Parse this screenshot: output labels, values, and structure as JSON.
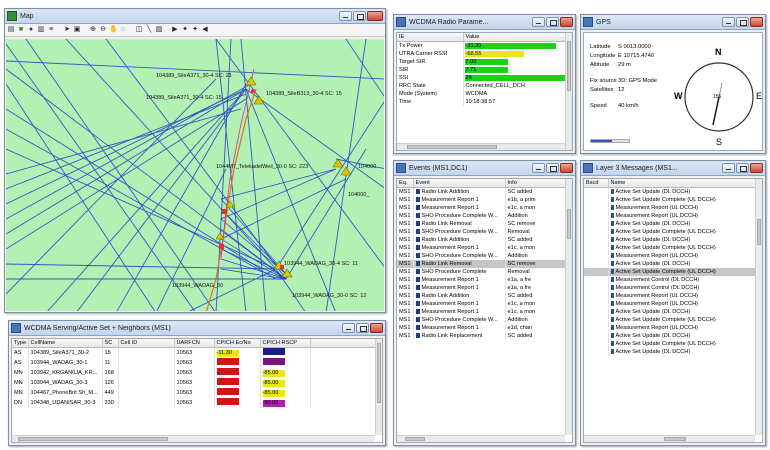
{
  "map": {
    "title": "Map",
    "toolbar_icons": [
      "layer-icon",
      "stop-icon",
      "info-icon",
      "legend-icon",
      "cursor-icon",
      "select-icon",
      "zoom-in-icon",
      "zoom-out-icon",
      "pan-icon",
      "measure-icon",
      "play-icon",
      "forward-icon"
    ],
    "sites": [
      {
        "label": "104389_SileA371_30-4 SC: 21"
      },
      {
        "label": "104389_SileA371_30-4 SC: 15"
      },
      {
        "label": "104389_SileB313_30-4 SC: 15"
      },
      {
        "label": "1044M7_TelekadelWeil_30-0 SC: 223"
      },
      {
        "label": "104000"
      },
      {
        "label": "104000_"
      },
      {
        "label": "103944_WADAG_30-4 SC: 11"
      },
      {
        "label": "103944_WADAG_30"
      },
      {
        "label": "103944_WADAG_30-0 SC: 12"
      }
    ]
  },
  "radio": {
    "title": "WCDMA Radio Parame...",
    "headers": [
      "IE",
      "Value"
    ],
    "rows": [
      {
        "ie": "Tx Power",
        "value": "-31.30",
        "color": "#19d219",
        "fill": 0.85
      },
      {
        "ie": "UTRA Carrier RSSI",
        "value": "-68.55",
        "color": "#e6e619",
        "fill": 0.55
      },
      {
        "ie": "Target SIR",
        "value": "7.00",
        "color": "#19d219",
        "fill": 0.4
      },
      {
        "ie": "SIR",
        "value": "7.71",
        "color": "#19d219",
        "fill": 0.4
      },
      {
        "ie": "SSI",
        "value": "28",
        "color": "#19d219",
        "fill": 0.95
      },
      {
        "ie": "RRC State",
        "value": "Connected_CELL_DCH",
        "color": "",
        "fill": 0
      },
      {
        "ie": "Mode (System)",
        "value": "WCDMA",
        "color": "",
        "fill": 0
      },
      {
        "ie": "Time",
        "value": "10:18:38.57",
        "color": "",
        "fill": 0
      }
    ]
  },
  "gps": {
    "title": "GPS",
    "lines": [
      {
        "k": "Latitude",
        "v": "S  0013.0000"
      },
      {
        "k": "Longitude",
        "v": "E 10715.4740"
      },
      {
        "k": "Altitude",
        "v": "29 m"
      },
      {
        "k": "Fix source",
        "v": "3D: GPS Mode"
      },
      {
        "k": "Satellites",
        "v": "12"
      },
      {
        "k": "Speed",
        "v": "40 km/h"
      }
    ],
    "compass": {
      "n": "N",
      "s": "S",
      "e": "E",
      "w": "W",
      "heading": "156"
    }
  },
  "events": {
    "title": "Events (MS1,DC1)",
    "headers": [
      "Eq.",
      "Event",
      "Info"
    ],
    "rows": [
      [
        "MS1",
        "Radio Link Addition",
        "SC added"
      ],
      [
        "MS1",
        "Measurement Report 1",
        "e1b, a prim"
      ],
      [
        "MS1",
        "Measurement Report 1",
        "e1c, a mon"
      ],
      [
        "MS1",
        "SHO Procedure Complete W...",
        "Addition"
      ],
      [
        "MS1",
        "Radio Link Removal",
        "SC remove"
      ],
      [
        "MS1",
        "SHO Procedure Complete W...",
        "Removal"
      ],
      [
        "MS1",
        "Radio Link Addition",
        "SC added"
      ],
      [
        "MS1",
        "Measurement Report 1",
        "e1c, a mon"
      ],
      [
        "MS1",
        "SHO Procedure Complete W...",
        "Addition"
      ],
      [
        "MS1",
        "Radio Link Removal",
        "SC remove"
      ],
      [
        "MS1",
        "SHO Procedure Complete",
        "Removal"
      ],
      [
        "MS1",
        "Measurement Report 1",
        "e1a, a fre"
      ],
      [
        "MS1",
        "Measurement Report 1",
        "e1a, a fre"
      ],
      [
        "MS1",
        "Radio Link Addition",
        "SC added"
      ],
      [
        "MS1",
        "Measurement Report 1",
        "e1c, a mon"
      ],
      [
        "MS1",
        "Measurement Report 1",
        "e1c, a mon"
      ],
      [
        "MS1",
        "SHO Procedure Complete W...",
        "Addition"
      ],
      [
        "MS1",
        "Measurement Report 1",
        "e1d, chan"
      ],
      [
        "MS1",
        "Radio Link Replacement",
        "SC added"
      ]
    ],
    "selected_index": 9
  },
  "layer3": {
    "title": "Layer 3 Messages (MS1...",
    "headers": [
      "Bscd",
      "Name"
    ],
    "rows": [
      "Active Set Update (DL DCCH)",
      "Active Set Update Complete (UL DCCH)",
      "Measurement Report (UL DCCH)",
      "Measurement Report (UL DCCH)",
      "Active Set Update (DL DCCH)",
      "Active Set Update Complete (UL DCCH)",
      "Active Set Update (DL DCCH)",
      "Active Set Update Complete (UL DCCH)",
      "Measurement Report (UL DCCH)",
      "Active Set Update (DL DCCH)",
      "Active Set Update Complete (UL DCCH)",
      "Measurement Control (DL DCCH)",
      "Measurement Control (DL DCCH)",
      "Measurement Report (UL DCCH)",
      "Measurement Report (UL DCCH)",
      "Active Set Update (DL DCCH)",
      "Active Set Update Complete (UL DCCH)",
      "Measurement Report (UL DCCH)",
      "Active Set Update (DL DCCH)",
      "Active Set Update Complete (UL DCCH)",
      "Active Set Update (DL DCCH)"
    ],
    "selected_index": 10
  },
  "serving": {
    "title": "WCDMA Serving/Active Set + Neighbors (MS1)",
    "headers": [
      "Type",
      "CellName",
      "SC",
      "Cell ID",
      "UARFCN",
      "CPICH Ec/No",
      "CPICH RSCP"
    ],
    "rows": [
      {
        "type": "AS",
        "cell": "104389_SileA371_30-2",
        "sc": "15",
        "id": "",
        "uarfcn": "10563",
        "ecno": "-11.30",
        "ecno_c": "#e6e619",
        "rscp": "",
        "rscp_c": "#1a1a8a"
      },
      {
        "type": "AS",
        "cell": "103944_WADAG_30-1",
        "sc": "11",
        "id": "",
        "uarfcn": "10563",
        "ecno": "",
        "ecno_c": "#d41414",
        "rscp": "",
        "rscp_c": "#7a147a"
      },
      {
        "type": "MN",
        "cell": "103942_KRGAN0JA_KR...",
        "sc": "168",
        "id": "",
        "uarfcn": "10563",
        "ecno": "",
        "ecno_c": "#d41414",
        "rscp": "-85.00",
        "rscp_c": "#e6e619"
      },
      {
        "type": "MN",
        "cell": "103944_WADAG_30-3",
        "sc": "126",
        "id": "",
        "uarfcn": "10563",
        "ecno": "",
        "ecno_c": "#d41414",
        "rscp": "-85.00",
        "rscp_c": "#e6e619"
      },
      {
        "type": "MN",
        "cell": "104467_PhoneBrit Sh_M...",
        "sc": "449",
        "id": "",
        "uarfcn": "10563",
        "ecno": "",
        "ecno_c": "#d41414",
        "rscp": "-85.00",
        "rscp_c": "#e6e619"
      },
      {
        "type": "DN",
        "cell": "104348_UDANISAR_30-3",
        "sc": "330",
        "id": "",
        "uarfcn": "10563",
        "ecno": "",
        "ecno_c": "#d41414",
        "rscp": "-90.00",
        "rscp_c": "#b31fb3"
      }
    ]
  }
}
